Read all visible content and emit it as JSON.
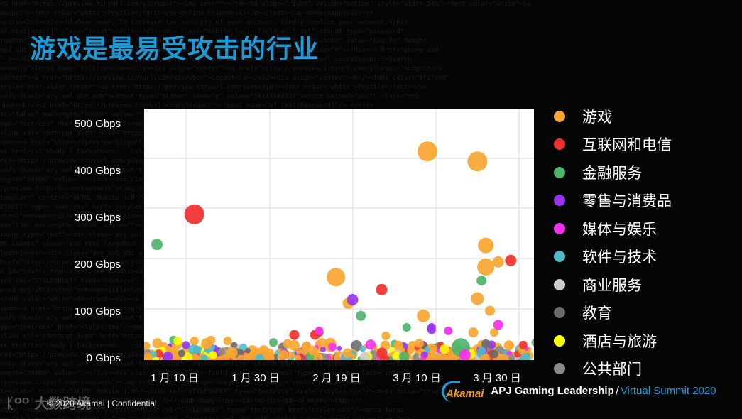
{
  "slide": {
    "title": "游戏是最易受攻击的行业",
    "footer_copyright": "© 2020 Akamai | Confidential",
    "watermark": "大数跨境",
    "brand": {
      "logo_text": "Akamai",
      "event_main": "APJ Gaming Leadership",
      "separator": "/",
      "event_sub": "Virtual Summit 2020"
    }
  },
  "colors": {
    "title": "#1b9ad6",
    "gaming": "#f9a52f",
    "internet_telecom": "#f2302f",
    "financial": "#4db56c",
    "retail": "#9b34f2",
    "media": "#f52ff2",
    "software": "#4fb9cc",
    "business": "#cccccc",
    "education": "#6b6b6b",
    "hospitality": "#ffff00",
    "public_sector": "#8a8a8a"
  },
  "legend": {
    "items": [
      {
        "label": "游戏",
        "color": "#f9a52f"
      },
      {
        "label": "互联网和电信",
        "color": "#f2302f"
      },
      {
        "label": "金融服务",
        "color": "#4db56c"
      },
      {
        "label": "零售与消费品",
        "color": "#9b34f2"
      },
      {
        "label": "媒体与娱乐",
        "color": "#f52ff2"
      },
      {
        "label": "软件与技术",
        "color": "#4fb9cc"
      },
      {
        "label": "商业服务",
        "color": "#cccccc"
      },
      {
        "label": "教育",
        "color": "#6b6b6b"
      },
      {
        "label": "酒店与旅游",
        "color": "#ffff00"
      },
      {
        "label": "公共部门",
        "color": "#8a8a8a"
      }
    ]
  },
  "axes": {
    "y_ticks": [
      "500 Gbps",
      "400 Gbps",
      "300 Gbps",
      "200 Gbps",
      "100 Gbps",
      "0 Gbps"
    ],
    "x_ticks": [
      "1 月 10 日",
      "1 月 30 日",
      "2 月 19 日",
      "3 月 10 日",
      "3 月 30 日"
    ]
  },
  "chart_data": {
    "type": "scatter",
    "title": "游戏是最易受攻击的行业",
    "xlabel": "",
    "ylabel": "Gbps",
    "ylim": [
      0,
      500
    ],
    "x_range": [
      "2020-01-01",
      "2020-04-07"
    ],
    "x_tick_labels": [
      "1 月 10 日",
      "1 月 30 日",
      "2 月 19 日",
      "3 月 10 日",
      "3 月 30 日"
    ],
    "y_tick_labels": [
      "0 Gbps",
      "100 Gbps",
      "200 Gbps",
      "300 Gbps",
      "400 Gbps",
      "500 Gbps"
    ],
    "grid": true,
    "legend_position": "right",
    "bubble": true,
    "series": [
      {
        "name": "游戏",
        "color": "#f9a52f",
        "points": [
          {
            "date": "2020-03-08",
            "gbps": 415,
            "size": 14
          },
          {
            "date": "2020-03-20",
            "gbps": 395,
            "size": 14
          },
          {
            "date": "2020-02-15",
            "gbps": 165,
            "size": 13
          },
          {
            "date": "2020-03-22",
            "gbps": 228,
            "size": 11
          },
          {
            "date": "2020-03-22",
            "gbps": 185,
            "size": 12
          },
          {
            "date": "2020-03-25",
            "gbps": 195,
            "size": 8
          },
          {
            "date": "2020-03-20",
            "gbps": 122,
            "size": 9
          },
          {
            "date": "2020-02-18",
            "gbps": 113,
            "size": 8
          },
          {
            "date": "2020-03-07",
            "gbps": 88,
            "size": 9
          },
          {
            "date": "2020-03-23",
            "gbps": 98,
            "size": 7
          },
          {
            "date": "2020-03-19",
            "gbps": 55,
            "size": 7
          },
          {
            "date": "2020-03-24",
            "gbps": 55,
            "size": 6
          },
          {
            "date": "2020-02-27",
            "gbps": 48,
            "size": 6
          },
          {
            "date": "2020-01-16",
            "gbps": 40,
            "size": 6
          },
          {
            "date": "2020-01-20",
            "gbps": 38,
            "size": 6
          },
          {
            "date": "2020-01-12",
            "gbps": 38,
            "size": 6
          }
        ]
      },
      {
        "name": "互联网和电信",
        "color": "#f2302f",
        "points": [
          {
            "date": "2020-01-12",
            "gbps": 290,
            "size": 14
          },
          {
            "date": "2020-03-28",
            "gbps": 198,
            "size": 8
          },
          {
            "date": "2020-02-26",
            "gbps": 140,
            "size": 8
          },
          {
            "date": "2020-02-05",
            "gbps": 50,
            "size": 7
          },
          {
            "date": "2020-02-10",
            "gbps": 50,
            "size": 7
          },
          {
            "date": "2020-02-11",
            "gbps": 55,
            "size": 6
          },
          {
            "date": "2020-03-31",
            "gbps": 30,
            "size": 6
          }
        ]
      },
      {
        "name": "金融服务",
        "color": "#4db56c",
        "points": [
          {
            "date": "2020-01-03",
            "gbps": 230,
            "size": 8
          },
          {
            "date": "2020-03-21",
            "gbps": 158,
            "size": 7
          },
          {
            "date": "2020-02-21",
            "gbps": 88,
            "size": 7
          },
          {
            "date": "2020-03-03",
            "gbps": 65,
            "size": 6
          },
          {
            "date": "2020-03-16",
            "gbps": 25,
            "size": 13
          },
          {
            "date": "2020-04-03",
            "gbps": 35,
            "size": 6
          },
          {
            "date": "2020-01-07",
            "gbps": 40,
            "size": 6
          },
          {
            "date": "2020-01-31",
            "gbps": 35,
            "size": 6
          }
        ]
      },
      {
        "name": "零售与消费品",
        "color": "#9b34f2",
        "points": [
          {
            "date": "2020-02-19",
            "gbps": 120,
            "size": 8
          },
          {
            "date": "2020-03-09",
            "gbps": 65,
            "size": 6
          },
          {
            "date": "2020-03-09",
            "gbps": 60,
            "size": 6
          }
        ]
      },
      {
        "name": "媒体与娱乐",
        "color": "#f52ff2",
        "points": [
          {
            "date": "2020-03-25",
            "gbps": 70,
            "size": 7
          },
          {
            "date": "2020-03-13",
            "gbps": 58,
            "size": 6
          },
          {
            "date": "2020-02-11",
            "gbps": 58,
            "size": 6
          },
          {
            "date": "2020-03-17",
            "gbps": 10,
            "size": 8
          }
        ]
      },
      {
        "name": "软件与技术",
        "color": "#4fb9cc",
        "points": [
          {
            "date": "2020-04-05",
            "gbps": 68,
            "size": 7
          },
          {
            "date": "2020-03-21",
            "gbps": 18,
            "size": 6
          }
        ]
      },
      {
        "name": "商业服务",
        "color": "#cccccc",
        "points": []
      },
      {
        "name": "教育",
        "color": "#6b6b6b",
        "points": [
          {
            "date": "2020-03-24",
            "gbps": 12,
            "size": 6
          }
        ]
      },
      {
        "name": "酒店与旅游",
        "color": "#ffff00",
        "points": [
          {
            "date": "2020-01-08",
            "gbps": 38,
            "size": 6
          }
        ]
      },
      {
        "name": "公共部门",
        "color": "#8a8a8a",
        "points": []
      }
    ],
    "note": "Dense cluster of small bubbles of all colors along 0–30 Gbps across the full date range"
  }
}
